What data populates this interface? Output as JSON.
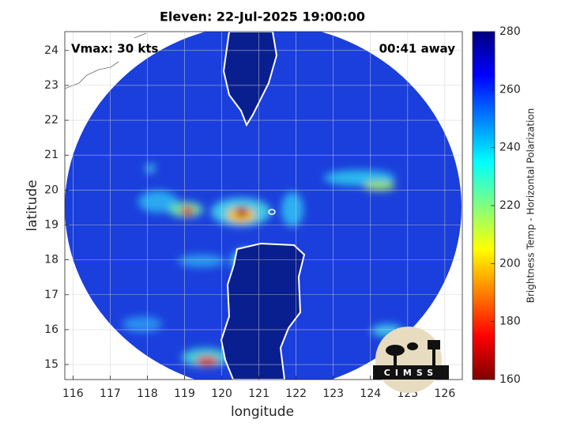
{
  "chart_data": {
    "type": "map",
    "title": "Eleven: 22-Jul-2025 19:00:00",
    "xlabel": "longitude",
    "ylabel": "latitude",
    "xlim": [
      115.78,
      126.47
    ],
    "ylim": [
      14.57,
      24.54
    ],
    "xticks": [
      116,
      117,
      118,
      119,
      120,
      121,
      122,
      123,
      124,
      125,
      126
    ],
    "yticks": [
      15,
      16,
      17,
      18,
      19,
      20,
      21,
      22,
      23,
      24
    ],
    "grid": true,
    "annotations": [
      "Vmax: 30 kts",
      "00:41 away"
    ],
    "colorbar": {
      "label": "Brightness Temp - Horizontal Polarization",
      "colormap": "jet",
      "lim": [
        160,
        280
      ],
      "ticks": [
        160,
        180,
        200,
        220,
        240,
        260,
        280
      ]
    },
    "logo": "CIMSS"
  }
}
